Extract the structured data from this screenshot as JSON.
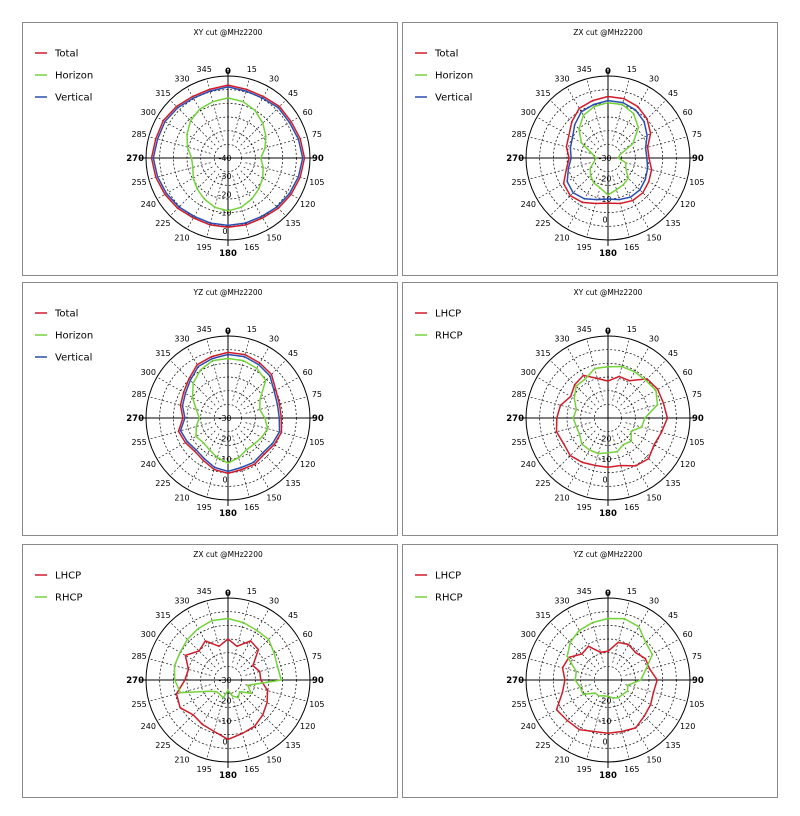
{
  "chart_data": [
    {
      "type": "polar-line",
      "title": "XY cut @MHz2200",
      "angle_ticks": [
        "0",
        "15",
        "30",
        "45",
        "60",
        "75",
        "90",
        "105",
        "120",
        "135",
        "150",
        "165",
        "180",
        "195",
        "210",
        "225",
        "240",
        "255",
        "270",
        "285",
        "300",
        "315",
        "330",
        "345"
      ],
      "radial_labels": [
        "0",
        "-10",
        "-20",
        "-30",
        "-40"
      ],
      "r_range": [
        -40,
        5
      ],
      "legend": [
        {
          "name": "Total",
          "color": "#d01c2a"
        },
        {
          "name": "Horizon",
          "color": "#74d23a"
        },
        {
          "name": "Vertical",
          "color": "#2a4fb0"
        }
      ],
      "series": [
        {
          "name": "Total",
          "color": "#d01c2a",
          "values": [
            0,
            -1,
            -1,
            0,
            0,
            1,
            2,
            1,
            0,
            -1,
            -2,
            -2,
            -2,
            -2,
            -2,
            -1,
            0,
            1,
            2,
            1,
            1,
            0,
            -1,
            -1
          ]
        },
        {
          "name": "Horizon",
          "color": "#74d23a",
          "values": [
            -7,
            -8,
            -10,
            -13,
            -16,
            -19,
            -22,
            -20,
            -18,
            -16,
            -14,
            -12,
            -11,
            -12,
            -14,
            -16,
            -18,
            -20,
            -20,
            -17,
            -14,
            -11,
            -9,
            -8
          ]
        },
        {
          "name": "Vertical",
          "color": "#2a4fb0",
          "values": [
            -1,
            -2,
            -2,
            -1,
            -1,
            0,
            1,
            0,
            -1,
            -2,
            -3,
            -3,
            -3,
            -3,
            -3,
            -2,
            -1,
            0,
            1,
            0,
            0,
            -1,
            -2,
            -2
          ]
        }
      ]
    },
    {
      "type": "polar-line",
      "title": "ZX cut @MHz2200",
      "angle_ticks": [
        "0",
        "15",
        "30",
        "45",
        "60",
        "75",
        "90",
        "105",
        "120",
        "135",
        "150",
        "165",
        "180",
        "195",
        "210",
        "225",
        "240",
        "255",
        "270",
        "285",
        "300",
        "315",
        "330",
        "345"
      ],
      "radial_labels": [
        "0",
        "-10",
        "-20",
        "-30"
      ],
      "r_range": [
        -30,
        10
      ],
      "legend": [
        {
          "name": "Total",
          "color": "#d01c2a"
        },
        {
          "name": "Horizon",
          "color": "#74d23a"
        },
        {
          "name": "Vertical",
          "color": "#2a4fb0"
        }
      ],
      "series": [
        {
          "name": "Total",
          "color": "#d01c2a",
          "values": [
            0,
            0,
            -1,
            -3,
            -6,
            -10,
            -10,
            -8,
            -7,
            -6,
            -6,
            -7,
            -8,
            -7,
            -5,
            -4,
            -5,
            -9,
            -11,
            -9,
            -8,
            -5,
            -2,
            -1
          ]
        },
        {
          "name": "Horizon",
          "color": "#74d23a",
          "values": [
            -3,
            -3,
            -5,
            -9,
            -16,
            -24,
            -25,
            -21,
            -20,
            -16,
            -15,
            -14,
            -12,
            -15,
            -16,
            -18,
            -20,
            -23,
            -24,
            -22,
            -15,
            -10,
            -6,
            -4
          ]
        },
        {
          "name": "Vertical",
          "color": "#2a4fb0",
          "values": [
            -2,
            -2,
            -3,
            -5,
            -8,
            -11,
            -11,
            -10,
            -9,
            -8,
            -8,
            -9,
            -10,
            -9,
            -7,
            -6,
            -7,
            -10,
            -12,
            -11,
            -10,
            -7,
            -4,
            -3
          ]
        }
      ]
    },
    {
      "type": "polar-line",
      "title": "YZ cut @MHz2200",
      "angle_ticks": [
        "0",
        "15",
        "30",
        "45",
        "60",
        "75",
        "90",
        "105",
        "120",
        "135",
        "150",
        "165",
        "180",
        "195",
        "210",
        "225",
        "240",
        "255",
        "270",
        "285",
        "300",
        "315",
        "330",
        "345"
      ],
      "radial_labels": [
        "0",
        "-10",
        "-20",
        "-30"
      ],
      "r_range": [
        -30,
        10
      ],
      "legend": [
        {
          "name": "Total",
          "color": "#d01c2a"
        },
        {
          "name": "Horizon",
          "color": "#74d23a"
        },
        {
          "name": "Vertical",
          "color": "#2a4fb0"
        }
      ],
      "series": [
        {
          "name": "Total",
          "color": "#d01c2a",
          "values": [
            2,
            2,
            1,
            0,
            -3,
            -4,
            -4,
            -3,
            -4,
            -5,
            -4,
            -4,
            -3,
            -4,
            -6,
            -7,
            -6,
            -5,
            -8,
            -6,
            -5,
            -3,
            0,
            1
          ]
        },
        {
          "name": "Horizon",
          "color": "#74d23a",
          "values": [
            -1,
            -1,
            -2,
            -4,
            -12,
            -14,
            -12,
            -10,
            -11,
            -12,
            -12,
            -10,
            -8,
            -10,
            -12,
            -13,
            -12,
            -14,
            -16,
            -14,
            -10,
            -6,
            -3,
            -1
          ]
        },
        {
          "name": "Vertical",
          "color": "#2a4fb0",
          "values": [
            1,
            1,
            0,
            -1,
            -4,
            -5,
            -5,
            -4,
            -5,
            -6,
            -5,
            -5,
            -4,
            -5,
            -7,
            -8,
            -7,
            -6,
            -9,
            -7,
            -6,
            -4,
            -1,
            0
          ]
        }
      ]
    },
    {
      "type": "polar-line",
      "title": "XY cut @MHz2200",
      "angle_ticks": [
        "0",
        "15",
        "30",
        "45",
        "60",
        "75",
        "90",
        "105",
        "120",
        "135",
        "150",
        "165",
        "180",
        "195",
        "210",
        "225",
        "240",
        "255",
        "270",
        "285",
        "300",
        "315",
        "330",
        "345"
      ],
      "radial_labels": [
        "0",
        "-10",
        "-20"
      ],
      "r_range": [
        -30,
        10
      ],
      "legend": [
        {
          "name": "LHCP",
          "color": "#d01c2a"
        },
        {
          "name": "RHCP",
          "color": "#74d23a"
        }
      ],
      "series": [
        {
          "name": "LHCP",
          "color": "#d01c2a",
          "values": [
            -12,
            -9,
            -9,
            -3,
            -2,
            -2,
            -1,
            -3,
            -4,
            -2,
            -3,
            -6,
            -6,
            -6,
            -5,
            -4,
            -5,
            -4,
            -5,
            -6,
            -9,
            -7,
            -6,
            -10
          ]
        },
        {
          "name": "RHCP",
          "color": "#74d23a",
          "values": [
            -5,
            -4,
            -4,
            -4,
            -3,
            -5,
            -12,
            -13,
            -17,
            -14,
            -15,
            -13,
            -13,
            -12,
            -12,
            -12,
            -14,
            -14,
            -13,
            -14,
            -11,
            -8,
            -8,
            -5
          ]
        }
      ]
    },
    {
      "type": "polar-line",
      "title": "ZX cut @MHz2200",
      "angle_ticks": [
        "0",
        "15",
        "30",
        "45",
        "60",
        "75",
        "90",
        "105",
        "120",
        "135",
        "150",
        "165",
        "180",
        "195",
        "210",
        "225",
        "240",
        "255",
        "270",
        "285",
        "300",
        "315",
        "330",
        "345"
      ],
      "radial_labels": [
        "0",
        "-10",
        "-20",
        "-30"
      ],
      "r_range": [
        -30,
        10
      ],
      "legend": [
        {
          "name": "LHCP",
          "color": "#d01c2a"
        },
        {
          "name": "RHCP",
          "color": "#74d23a"
        }
      ],
      "series": [
        {
          "name": "LHCP",
          "color": "#d01c2a",
          "values": [
            -10,
            -13,
            -8,
            -9,
            -16,
            -14,
            -14,
            -10,
            -8,
            -6,
            -4,
            -3,
            -1,
            -4,
            -5,
            -6,
            -3,
            -4,
            -9,
            -10,
            -6,
            -10,
            -8,
            -13
          ]
        },
        {
          "name": "RHCP",
          "color": "#74d23a",
          "values": [
            0,
            -1,
            -2,
            -2,
            -4,
            -5,
            -4,
            -20,
            -17,
            -22,
            -20,
            -22,
            -25,
            -21,
            -22,
            -22,
            -19,
            -6,
            -4,
            -3,
            -3,
            -2,
            -1,
            0
          ]
        }
      ]
    },
    {
      "type": "polar-line",
      "title": "YZ cut @MHz2200",
      "angle_ticks": [
        "0",
        "15",
        "30",
        "45",
        "60",
        "75",
        "90",
        "105",
        "120",
        "135",
        "150",
        "165",
        "180",
        "195",
        "210",
        "225",
        "240",
        "255",
        "270",
        "285",
        "300",
        "315",
        "330",
        "345"
      ],
      "radial_labels": [
        "0",
        "-10",
        "-20"
      ],
      "r_range": [
        -30,
        10
      ],
      "legend": [
        {
          "name": "LHCP",
          "color": "#d01c2a"
        },
        {
          "name": "RHCP",
          "color": "#74d23a"
        }
      ],
      "series": [
        {
          "name": "LHCP",
          "color": "#d01c2a",
          "values": [
            -16,
            -11,
            -10,
            -11,
            -9,
            -9,
            -6,
            -7,
            -6,
            -5,
            -3,
            -4,
            -4,
            -4,
            -2,
            -2,
            -1,
            -7,
            -9,
            -7,
            -8,
            -12,
            -11,
            -16
          ]
        },
        {
          "name": "RHCP",
          "color": "#74d23a",
          "values": [
            0,
            1,
            0,
            -4,
            -5,
            -11,
            -14,
            -20,
            -19,
            -20,
            -20,
            -21,
            -22,
            -22,
            -21,
            -21,
            -16,
            -16,
            -14,
            -14,
            -7,
            -4,
            -2,
            -1
          ]
        }
      ]
    }
  ]
}
